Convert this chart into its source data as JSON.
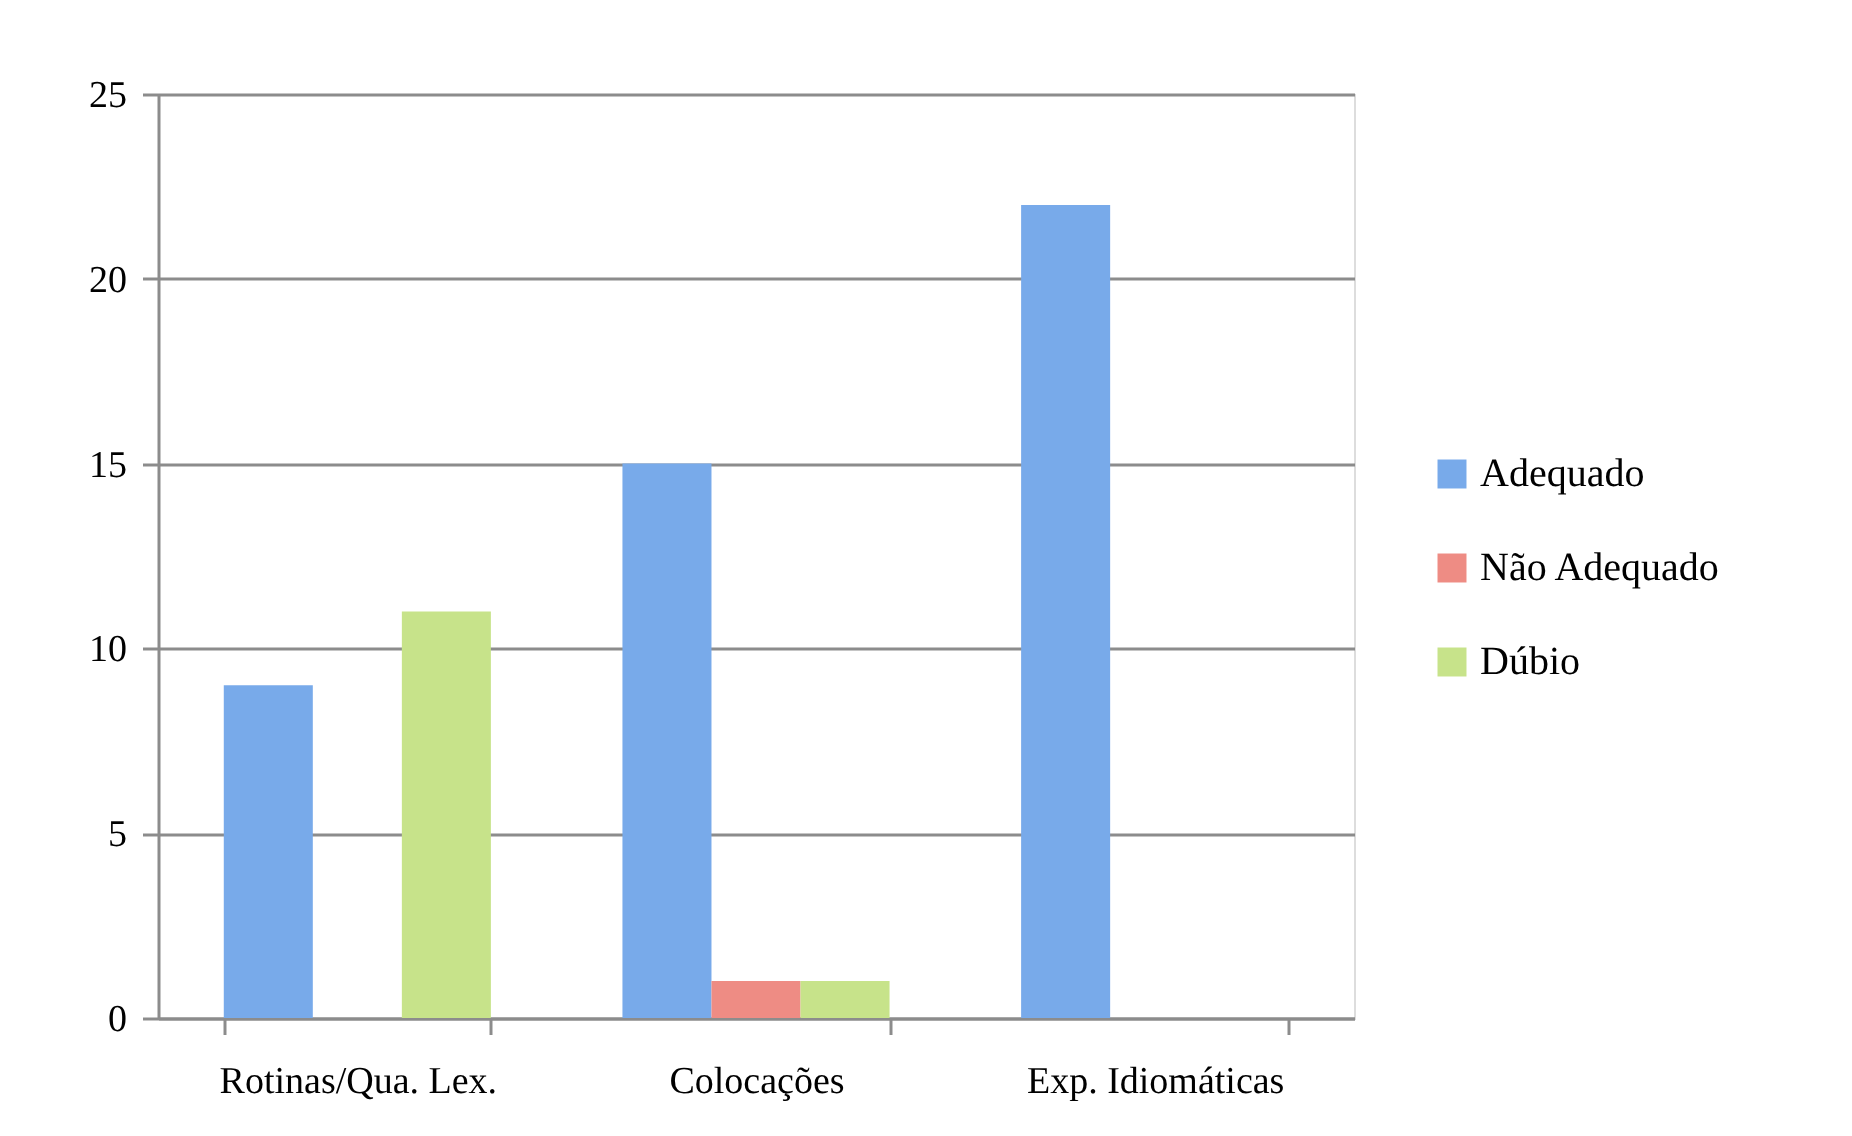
{
  "chart_data": {
    "type": "bar",
    "categories": [
      "Rotinas/Qua. Lex.",
      "Colocações",
      "Exp. Idiomáticas"
    ],
    "series": [
      {
        "name": "Adequado",
        "color": "#78aaea",
        "values": [
          9,
          15,
          22
        ]
      },
      {
        "name": "Não Adequado",
        "color": "#ee8c84",
        "values": [
          0,
          1,
          0
        ]
      },
      {
        "name": "Dúbio",
        "color": "#c7e38a",
        "values": [
          11,
          1,
          0
        ]
      }
    ],
    "ylim": [
      0,
      25
    ],
    "yticks": [
      0,
      5,
      10,
      15,
      20,
      25
    ],
    "grid": "y",
    "legend": "right"
  }
}
